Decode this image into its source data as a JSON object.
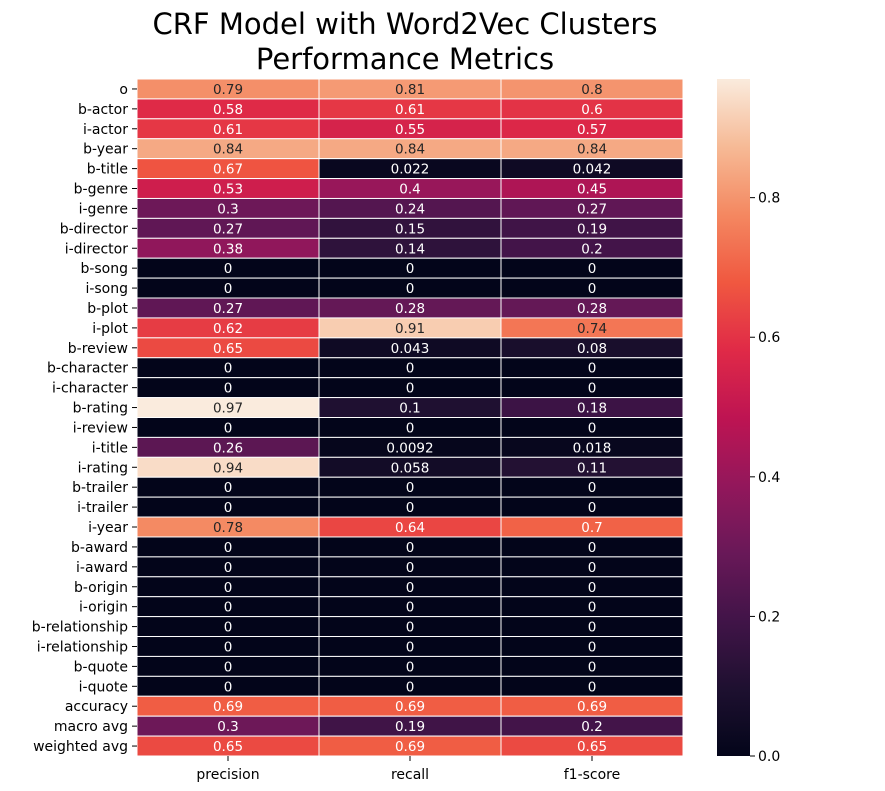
{
  "chart_data": {
    "type": "heatmap",
    "title": "CRF Model with Word2Vec Clusters\nPerformance Metrics",
    "columns": [
      "precision",
      "recall",
      "f1-score"
    ],
    "rows": [
      "o",
      "b-actor",
      "i-actor",
      "b-year",
      "b-title",
      "b-genre",
      "i-genre",
      "b-director",
      "i-director",
      "b-song",
      "i-song",
      "b-plot",
      "i-plot",
      "b-review",
      "b-character",
      "i-character",
      "b-rating",
      "i-review",
      "i-title",
      "i-rating",
      "b-trailer",
      "i-trailer",
      "i-year",
      "b-award",
      "i-award",
      "b-origin",
      "i-origin",
      "b-relationship",
      "i-relationship",
      "b-quote",
      "i-quote",
      "accuracy",
      "macro avg",
      "weighted avg"
    ],
    "values": [
      [
        0.79,
        0.81,
        0.8
      ],
      [
        0.58,
        0.61,
        0.6
      ],
      [
        0.61,
        0.55,
        0.57
      ],
      [
        0.84,
        0.84,
        0.84
      ],
      [
        0.67,
        0.022,
        0.042
      ],
      [
        0.53,
        0.4,
        0.45
      ],
      [
        0.3,
        0.24,
        0.27
      ],
      [
        0.27,
        0.15,
        0.19
      ],
      [
        0.38,
        0.14,
        0.2
      ],
      [
        0,
        0,
        0
      ],
      [
        0,
        0,
        0
      ],
      [
        0.27,
        0.28,
        0.28
      ],
      [
        0.62,
        0.91,
        0.74
      ],
      [
        0.65,
        0.043,
        0.08
      ],
      [
        0,
        0,
        0
      ],
      [
        0,
        0,
        0
      ],
      [
        0.97,
        0.1,
        0.18
      ],
      [
        0,
        0,
        0
      ],
      [
        0.26,
        0.0092,
        0.018
      ],
      [
        0.94,
        0.058,
        0.11
      ],
      [
        0,
        0,
        0
      ],
      [
        0,
        0,
        0
      ],
      [
        0.78,
        0.64,
        0.7
      ],
      [
        0,
        0,
        0
      ],
      [
        0,
        0,
        0
      ],
      [
        0,
        0,
        0
      ],
      [
        0,
        0,
        0
      ],
      [
        0,
        0,
        0
      ],
      [
        0,
        0,
        0
      ],
      [
        0,
        0,
        0
      ],
      [
        0,
        0,
        0
      ],
      [
        0.69,
        0.69,
        0.69
      ],
      [
        0.3,
        0.19,
        0.2
      ],
      [
        0.65,
        0.69,
        0.65
      ]
    ],
    "value_range": [
      0,
      0.97
    ],
    "colormap": "rocket",
    "colorbar": {
      "ticks": [
        0.0,
        0.2,
        0.4,
        0.6,
        0.8
      ],
      "tick_labels": [
        "0.0",
        "0.2",
        "0.4",
        "0.6",
        "0.8"
      ],
      "placement": "right"
    }
  }
}
